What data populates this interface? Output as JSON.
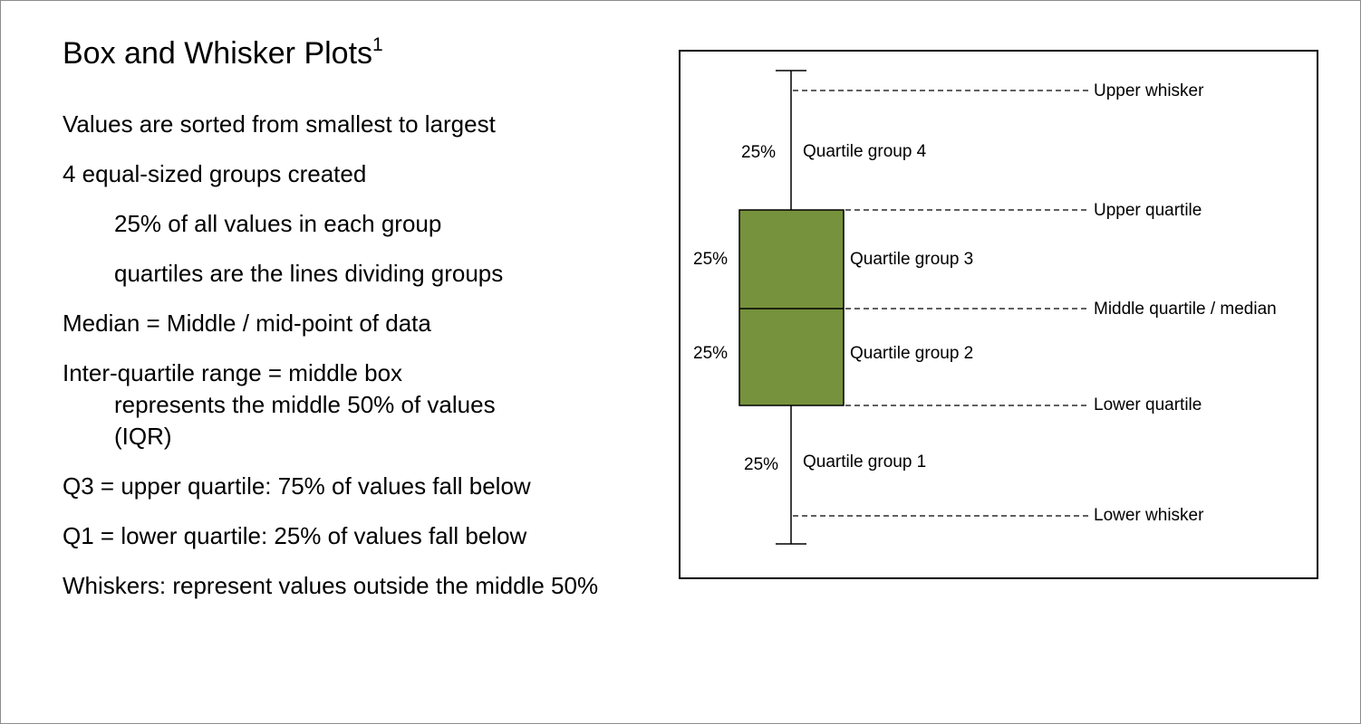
{
  "slide": {
    "title": "Box and Whisker Plots",
    "title_superscript": "1",
    "bullets": {
      "b1": "Values are sorted from smallest to largest",
      "b2": "4 equal-sized groups created",
      "b2a": "25% of all values in each group",
      "b2b": "quartiles are the lines dividing groups",
      "b3": "Median = Middle / mid-point of data",
      "b4_line1": "Inter-quartile range = middle box",
      "b4_line2": "represents the middle 50% of values",
      "b4_line3": "(IQR)",
      "b5": "Q3 = upper quartile: 75% of values fall below",
      "b6": "Q1 = lower quartile: 25% of values fall below",
      "b7": "Whiskers: represent values outside the middle 50%"
    }
  },
  "diagram": {
    "box_fill": "#76923c",
    "labels": {
      "upper_whisker": "Upper whisker",
      "upper_quartile": "Upper quartile",
      "median": "Middle quartile / median",
      "lower_quartile": "Lower quartile",
      "lower_whisker": "Lower whisker"
    },
    "groups": {
      "g4": "Quartile group 4",
      "g3": "Quartile group 3",
      "g2": "Quartile group 2",
      "g1": "Quartile group 1"
    },
    "percents": {
      "p4": "25%",
      "p3": "25%",
      "p2": "25%",
      "p1": "25%"
    }
  }
}
